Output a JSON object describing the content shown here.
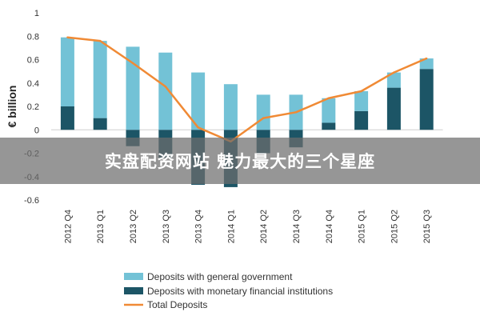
{
  "chart_data": {
    "type": "bar",
    "ylabel": "€ billion",
    "ylim": [
      -0.6,
      1
    ],
    "yticks": [
      "1",
      "0.8",
      "0.6",
      "0.4",
      "0.2",
      "0",
      "-0.2",
      "-0.4",
      "-0.6"
    ],
    "categories": [
      "2012 Q4",
      "2013 Q1",
      "2013 Q2",
      "2013 Q3",
      "2013 Q4",
      "2014 Q1",
      "2014 Q2",
      "2014 Q3",
      "2014 Q4",
      "2015 Q1",
      "2015 Q2",
      "2015 Q3"
    ],
    "series": [
      {
        "name": "Deposits with general government",
        "kind": "bar",
        "color": "#73C2D6",
        "values": [
          0.59,
          0.66,
          0.71,
          0.66,
          0.49,
          0.39,
          0.3,
          0.3,
          0.21,
          0.17,
          0.13,
          0.09
        ]
      },
      {
        "name": "Deposits with monetary financial institutions",
        "kind": "bar",
        "color": "#1C5566",
        "values": [
          0.2,
          0.1,
          -0.14,
          -0.24,
          -0.47,
          -0.49,
          -0.2,
          -0.15,
          0.06,
          0.16,
          0.36,
          0.52
        ]
      },
      {
        "name": "Total Deposits",
        "kind": "line",
        "color": "#F08A35",
        "values": [
          0.79,
          0.76,
          0.57,
          0.37,
          0.02,
          -0.1,
          0.1,
          0.15,
          0.27,
          0.33,
          0.49,
          0.61
        ]
      }
    ],
    "legend_position": "bottom",
    "grid": false
  },
  "watermark": {
    "text": "实盘配资网站 魅力最大的三个星座"
  }
}
